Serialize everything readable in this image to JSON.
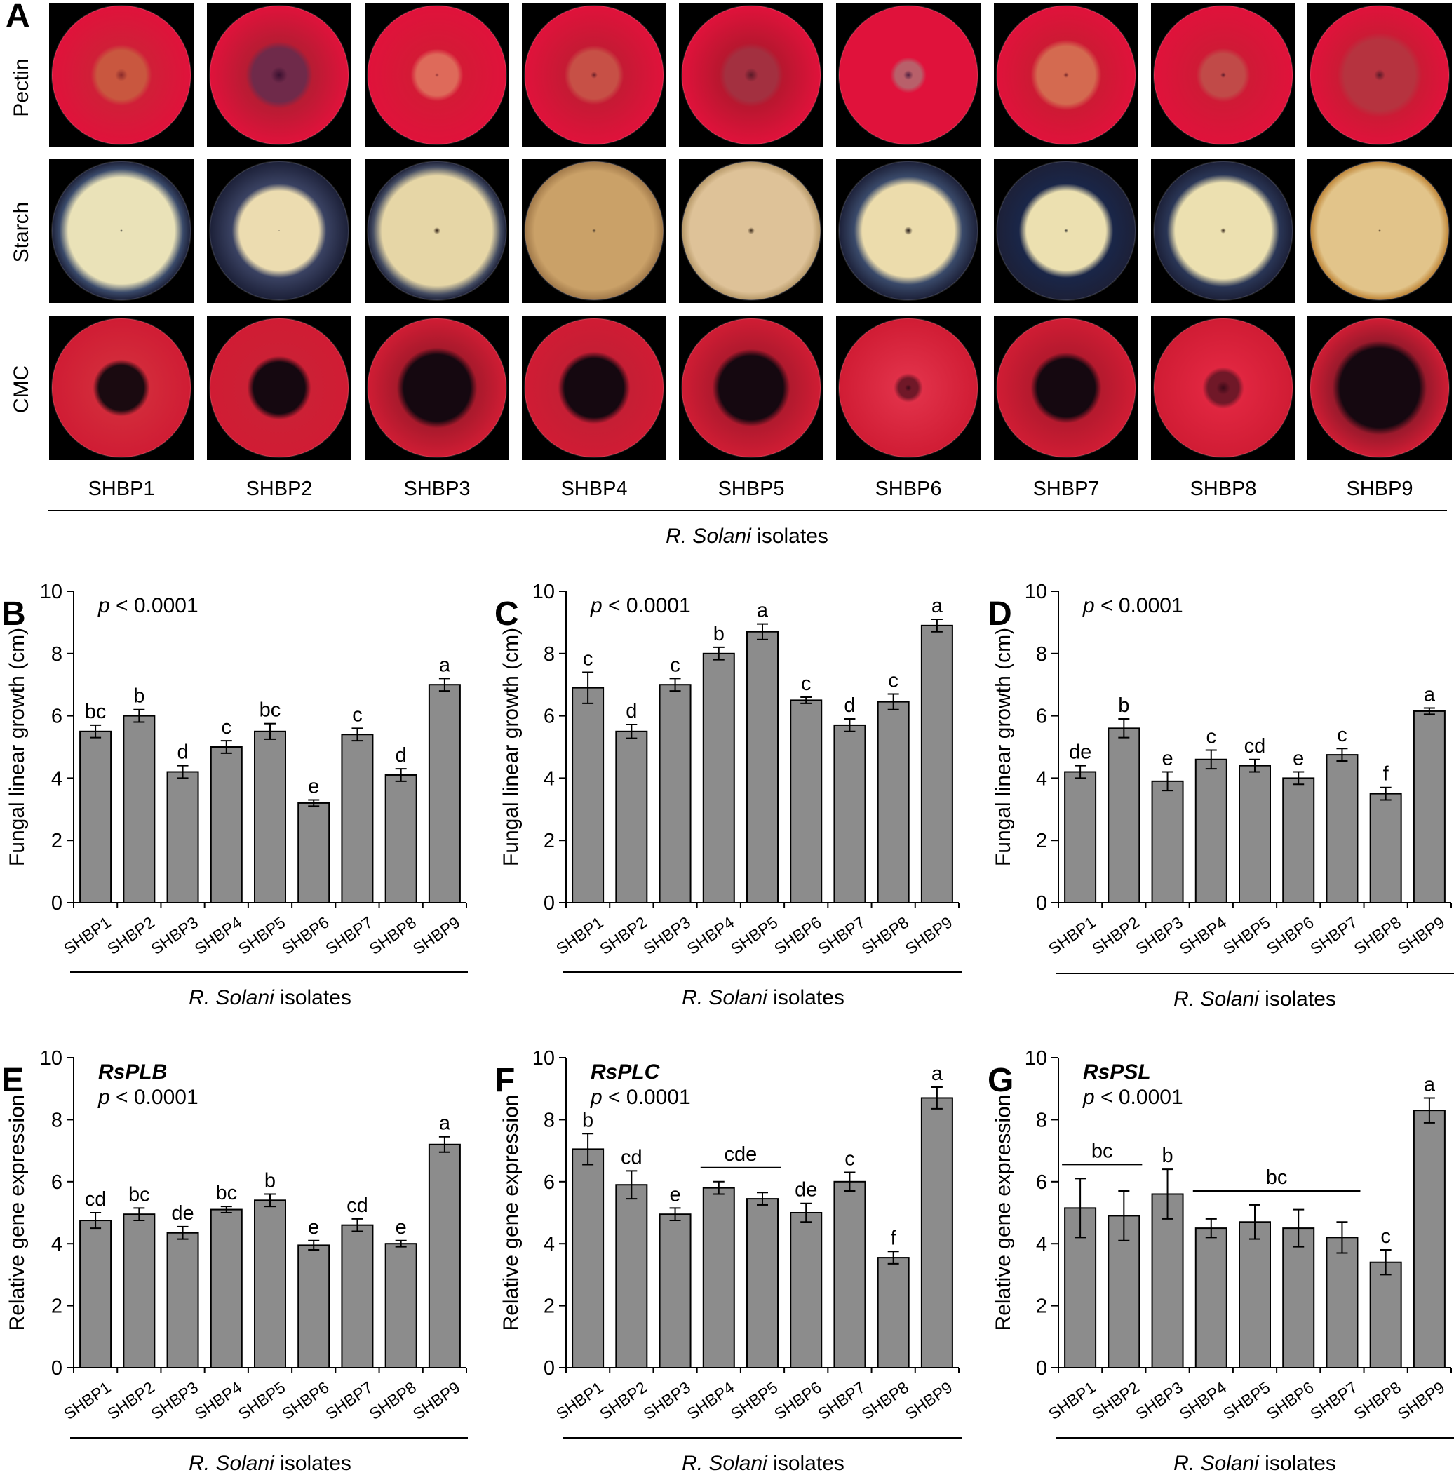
{
  "isolates": [
    "SHBP1",
    "SHBP2",
    "SHBP3",
    "SHBP4",
    "SHBP5",
    "SHBP6",
    "SHBP7",
    "SHBP8",
    "SHBP9"
  ],
  "axis_title_italic": "R. Solani",
  "axis_title_rest": " isolates",
  "pvalue": {
    "italic": "p",
    "rest": " < 0.0001"
  },
  "panel_a": {
    "letter": "A",
    "rows": [
      {
        "label": "Pectin",
        "medium": "#e0123b",
        "cells": [
          {
            "halo": "#d01f38",
            "zone": "#c9573f",
            "zr": 0.38,
            "center": "#8a2a2a",
            "cr": 0.09
          },
          {
            "halo": "#b71c33",
            "zone": "#6f2a4a",
            "zr": 0.42,
            "center": "#3a1030",
            "cr": 0.12
          },
          {
            "halo": "#d41a36",
            "zone": "#de6a5a",
            "zr": 0.32,
            "center": "#9a3a3a",
            "cr": 0.03
          },
          {
            "halo": "#c51a34",
            "zone": "#c75046",
            "zr": 0.37,
            "center": "#6b2028",
            "cr": 0.05
          },
          {
            "halo": "#b8172f",
            "zone": "#a33040",
            "zr": 0.4,
            "center": "#5a1a28",
            "cr": 0.1
          },
          {
            "halo": "#e0123b",
            "zone": "#b8606a",
            "zr": 0.2,
            "center": "#502040",
            "cr": 0.07
          },
          {
            "halo": "#cd1a34",
            "zone": "#d46a50",
            "zr": 0.45,
            "center": "#7a2a2a",
            "cr": 0.04
          },
          {
            "halo": "#cf1a36",
            "zone": "#c14a48",
            "zr": 0.33,
            "center": "#5a1a2a",
            "cr": 0.04
          },
          {
            "halo": "#cc1a35",
            "zone": "#b6333f",
            "zr": 0.55,
            "center": "#5a1a28",
            "cr": 0.08
          }
        ]
      },
      {
        "label": "Starch",
        "medium": "#1c2038",
        "cells": [
          {
            "halo": "#3a4a6a",
            "zone": "#eae2b8",
            "zr": 0.83,
            "center": "#2a2a2a",
            "cr": 0.02
          },
          {
            "halo": "#3a4262",
            "zone": "#ecdcb0",
            "zr": 0.62,
            "center": "#2a2a2a",
            "cr": 0.01
          },
          {
            "halo": "#444c62",
            "zone": "#e6d6a6",
            "zr": 0.86,
            "center": "#2a1a10",
            "cr": 0.05
          },
          {
            "halo": "#a27a4a",
            "zone": "#caa168",
            "zr": 0.93,
            "center": "#4a3a2a",
            "cr": 0.03
          },
          {
            "halo": "#b89a6a",
            "zone": "#dec298",
            "zr": 0.96,
            "center": "#3a2a1a",
            "cr": 0.05
          },
          {
            "halo": "#3a4a6a",
            "zone": "#ecdcac",
            "zr": 0.72,
            "center": "#1a1010",
            "cr": 0.06
          },
          {
            "halo": "#1a2648",
            "zone": "#ece0b0",
            "zr": 0.62,
            "center": "#2a2a2a",
            "cr": 0.03
          },
          {
            "halo": "#2a3656",
            "zone": "#ece0b0",
            "zr": 0.75,
            "center": "#2a1a10",
            "cr": 0.04
          },
          {
            "halo": "#c0883a",
            "zone": "#e2c48a",
            "zr": 0.96,
            "center": "#3a2a1a",
            "cr": 0.02
          }
        ]
      },
      {
        "label": "CMC",
        "medium": "#d01c34",
        "cells": [
          {
            "halo": "#d22a3a",
            "zone": "#1a0a10",
            "zr": 0.35,
            "center": "#1a0a10",
            "cr": 0.01
          },
          {
            "halo": "#cc2035",
            "zone": "#150810",
            "zr": 0.4,
            "center": "#150810",
            "cr": 0.01
          },
          {
            "halo": "#a81a2c",
            "zone": "#150810",
            "zr": 0.52,
            "center": "#150810",
            "cr": 0.01
          },
          {
            "halo": "#c51e34",
            "zone": "#150810",
            "zr": 0.46,
            "center": "#150810",
            "cr": 0.01
          },
          {
            "halo": "#b01a2e",
            "zone": "#150810",
            "zr": 0.5,
            "center": "#150810",
            "cr": 0.01
          },
          {
            "halo": "#e03048",
            "zone": "#701828",
            "zr": 0.15,
            "center": "#3a0a18",
            "cr": 0.05
          },
          {
            "halo": "#b41a2e",
            "zone": "#150810",
            "zr": 0.45,
            "center": "#150810",
            "cr": 0.01
          },
          {
            "halo": "#e02640",
            "zone": "#701828",
            "zr": 0.24,
            "center": "#3a0a18",
            "cr": 0.1
          },
          {
            "halo": "#9a1a2c",
            "zone": "#150810",
            "zr": 0.62,
            "center": "#150810",
            "cr": 0.01
          }
        ]
      }
    ]
  },
  "chart_data": [
    {
      "panel": "B",
      "type": "bar",
      "ylabel": "Fungal linear growth (cm)",
      "gene": "",
      "ylim": [
        0,
        10
      ],
      "yticks": [
        0,
        2,
        4,
        6,
        8,
        10
      ],
      "categories": [
        "SHBP1",
        "SHBP2",
        "SHBP3",
        "SHBP4",
        "SHBP5",
        "SHBP6",
        "SHBP7",
        "SHBP8",
        "SHBP9"
      ],
      "values": [
        5.5,
        6.0,
        4.2,
        5.0,
        5.5,
        3.2,
        5.4,
        4.1,
        7.0
      ],
      "errors": [
        0.2,
        0.2,
        0.2,
        0.2,
        0.25,
        0.1,
        0.2,
        0.2,
        0.2
      ],
      "letters": [
        "bc",
        "b",
        "d",
        "c",
        "bc",
        "e",
        "c",
        "d",
        "a"
      ],
      "groups": []
    },
    {
      "panel": "C",
      "type": "bar",
      "ylabel": "Fungal linear growth (cm)",
      "gene": "",
      "ylim": [
        0,
        10
      ],
      "yticks": [
        0,
        2,
        4,
        6,
        8,
        10
      ],
      "categories": [
        "SHBP1",
        "SHBP2",
        "SHBP3",
        "SHBP4",
        "SHBP5",
        "SHBP6",
        "SHBP7",
        "SHBP8",
        "SHBP9"
      ],
      "values": [
        6.9,
        5.5,
        7.0,
        8.0,
        8.7,
        6.5,
        5.7,
        6.45,
        8.9
      ],
      "errors": [
        0.5,
        0.22,
        0.2,
        0.2,
        0.25,
        0.1,
        0.2,
        0.25,
        0.2
      ],
      "letters": [
        "c",
        "d",
        "c",
        "b",
        "a",
        "c",
        "d",
        "c",
        "a"
      ],
      "groups": []
    },
    {
      "panel": "D",
      "type": "bar",
      "ylabel": "Fungal linear growth (cm)",
      "gene": "",
      "ylim": [
        0,
        10
      ],
      "yticks": [
        0,
        2,
        4,
        6,
        8,
        10
      ],
      "categories": [
        "SHBP1",
        "SHBP2",
        "SHBP3",
        "SHBP4",
        "SHBP5",
        "SHBP6",
        "SHBP7",
        "SHBP8",
        "SHBP9"
      ],
      "values": [
        4.2,
        5.6,
        3.9,
        4.6,
        4.4,
        4.0,
        4.75,
        3.5,
        6.15
      ],
      "errors": [
        0.2,
        0.3,
        0.3,
        0.3,
        0.2,
        0.2,
        0.2,
        0.2,
        0.1
      ],
      "letters": [
        "de",
        "b",
        "e",
        "c",
        "cd",
        "e",
        "c",
        "f",
        "a"
      ],
      "groups": []
    },
    {
      "panel": "E",
      "type": "bar",
      "ylabel": "Relative gene expression",
      "gene": "RsPLB",
      "ylim": [
        0,
        10
      ],
      "yticks": [
        0,
        2,
        4,
        6,
        8,
        10
      ],
      "categories": [
        "SHBP1",
        "SHBP2",
        "SHBP3",
        "SHBP4",
        "SHBP5",
        "SHBP6",
        "SHBP7",
        "SHBP8",
        "SHBP9"
      ],
      "values": [
        4.75,
        4.95,
        4.35,
        5.1,
        5.4,
        3.95,
        4.6,
        4.0,
        7.2
      ],
      "errors": [
        0.25,
        0.2,
        0.2,
        0.1,
        0.2,
        0.15,
        0.2,
        0.1,
        0.25
      ],
      "letters": [
        "cd",
        "bc",
        "de",
        "bc",
        "b",
        "e",
        "cd",
        "e",
        "a"
      ],
      "groups": []
    },
    {
      "panel": "F",
      "type": "bar",
      "ylabel": "Relative gene expression",
      "gene": "RsPLC",
      "ylim": [
        0,
        10
      ],
      "yticks": [
        0,
        2,
        4,
        6,
        8,
        10
      ],
      "categories": [
        "SHBP1",
        "SHBP2",
        "SHBP3",
        "SHBP4",
        "SHBP5",
        "SHBP6",
        "SHBP7",
        "SHBP8",
        "SHBP9"
      ],
      "values": [
        7.05,
        5.9,
        4.95,
        5.8,
        5.45,
        5.0,
        6.0,
        3.55,
        8.7
      ],
      "errors": [
        0.5,
        0.45,
        0.2,
        0.2,
        0.2,
        0.3,
        0.3,
        0.2,
        0.35
      ],
      "letters": [
        "b",
        "cd",
        "e",
        "",
        "",
        "de",
        "c",
        "f",
        "a"
      ],
      "groups": [
        {
          "label": "cde",
          "from": 3,
          "to": 4
        }
      ]
    },
    {
      "panel": "G",
      "type": "bar",
      "ylabel": "Relative gene expression",
      "gene": "RsPSL",
      "ylim": [
        0,
        10
      ],
      "yticks": [
        0,
        2,
        4,
        6,
        8,
        10
      ],
      "categories": [
        "SHBP1",
        "SHBP2",
        "SHBP3",
        "SHBP4",
        "SHBP5",
        "SHBP6",
        "SHBP7",
        "SHBP8",
        "SHBP9"
      ],
      "values": [
        5.15,
        4.9,
        5.6,
        4.5,
        4.7,
        4.5,
        4.2,
        3.4,
        8.3
      ],
      "errors": [
        0.95,
        0.8,
        0.8,
        0.3,
        0.55,
        0.6,
        0.5,
        0.4,
        0.4
      ],
      "letters": [
        "",
        "",
        "b",
        "",
        "",
        "",
        "",
        "c",
        "a"
      ],
      "groups": [
        {
          "label": "bc",
          "from": 0,
          "to": 1
        },
        {
          "label": "bc",
          "from": 3,
          "to": 6
        }
      ]
    }
  ]
}
